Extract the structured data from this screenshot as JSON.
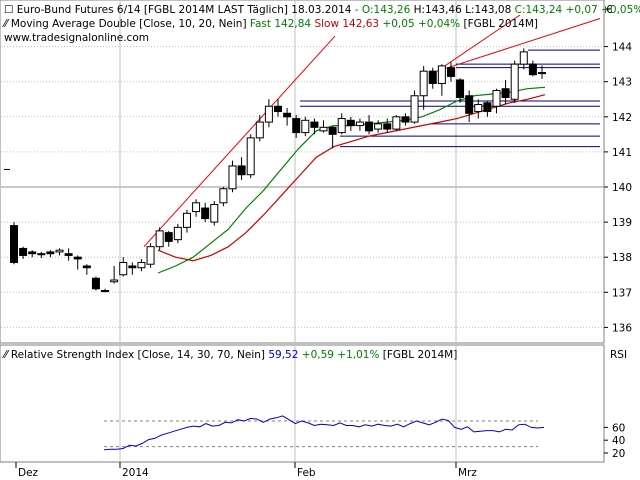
{
  "price_panel": {
    "header": {
      "instrument": "Euro-Bund Futures 6/14 [FGBL 2014M LAST Täglich] 18.03.2014",
      "ohlc_o": "- O:143,26",
      "ohlc_h": "H:143,46",
      "ohlc_l": "L:143,08",
      "ohlc_c": "C:143,24",
      "change": "+0,07 +0,05%"
    },
    "ma_header": {
      "name": "Moving Average Double [Close, 10, 20, Nein]",
      "fast_label": "Fast 142,84",
      "slow_label": "Slow 142,63",
      "change": "+0,05 +0,04%",
      "symbol": "[FGBL 2014M]"
    },
    "website": "www.tradesignalonline.com",
    "currency_symbol": "€",
    "y_ticks": [
      "136",
      "137",
      "138",
      "139",
      "140",
      "141",
      "142",
      "143",
      "144"
    ]
  },
  "rsi_panel": {
    "header": {
      "name": "Relative Strength Index [Close, 14, 30, 70, Nein]",
      "value": "59,52",
      "change": "+0,59 +1,01%",
      "symbol": "[FGBL 2014M]"
    },
    "axis_label": "RSI",
    "y_ticks": [
      "20",
      "40",
      "60"
    ]
  },
  "x_axis": {
    "labels": [
      "Dez",
      "2014",
      "Feb",
      "Mrz"
    ]
  },
  "colors": {
    "fast_ma": "#008000",
    "slow_ma": "#cc0000",
    "rsi_line": "#0000cc",
    "channel": "#ee0000",
    "support": "#000080",
    "grid": "#c0c0c0"
  },
  "chart_data": [
    {
      "type": "candlestick",
      "title": "Euro-Bund Futures 6/14 [FGBL 2014M LAST Täglich]",
      "ylim": [
        135.5,
        144.5
      ],
      "last_bar": {
        "date": "18.03.2014",
        "open": 143.26,
        "high": 143.46,
        "low": 143.08,
        "close": 143.24
      },
      "candles": [
        {
          "o": 138.9,
          "h": 139.0,
          "l": 137.8,
          "c": 137.85
        },
        {
          "o": 138.25,
          "h": 138.3,
          "l": 137.95,
          "c": 138.05
        },
        {
          "o": 138.15,
          "h": 138.2,
          "l": 138.0,
          "c": 138.1
        },
        {
          "o": 138.1,
          "h": 138.15,
          "l": 137.98,
          "c": 138.1
        },
        {
          "o": 138.15,
          "h": 138.2,
          "l": 138.0,
          "c": 138.1
        },
        {
          "o": 138.15,
          "h": 138.25,
          "l": 138.05,
          "c": 138.2
        },
        {
          "o": 138.1,
          "h": 138.25,
          "l": 137.9,
          "c": 138.05
        },
        {
          "o": 138.0,
          "h": 138.05,
          "l": 137.65,
          "c": 137.95
        },
        {
          "o": 137.75,
          "h": 137.8,
          "l": 137.5,
          "c": 137.7
        },
        {
          "o": 137.4,
          "h": 137.45,
          "l": 137.05,
          "c": 137.1
        },
        {
          "o": 137.05,
          "h": 137.1,
          "l": 137.0,
          "c": 137.05
        },
        {
          "o": 137.3,
          "h": 137.75,
          "l": 137.25,
          "c": 137.35
        },
        {
          "o": 137.5,
          "h": 138.0,
          "l": 137.45,
          "c": 137.85
        },
        {
          "o": 137.75,
          "h": 137.85,
          "l": 137.5,
          "c": 137.7
        },
        {
          "o": 137.7,
          "h": 137.95,
          "l": 137.6,
          "c": 137.85
        },
        {
          "o": 137.8,
          "h": 138.4,
          "l": 137.7,
          "c": 138.3
        },
        {
          "o": 138.3,
          "h": 138.85,
          "l": 138.2,
          "c": 138.75
        },
        {
          "o": 138.7,
          "h": 138.75,
          "l": 138.3,
          "c": 138.45
        },
        {
          "o": 138.5,
          "h": 138.95,
          "l": 138.4,
          "c": 138.85
        },
        {
          "o": 138.85,
          "h": 139.35,
          "l": 138.7,
          "c": 139.25
        },
        {
          "o": 139.3,
          "h": 139.65,
          "l": 139.15,
          "c": 139.55
        },
        {
          "o": 139.4,
          "h": 139.55,
          "l": 139.0,
          "c": 139.1
        },
        {
          "o": 139.0,
          "h": 139.6,
          "l": 138.9,
          "c": 139.5
        },
        {
          "o": 139.55,
          "h": 140.0,
          "l": 139.45,
          "c": 139.95
        },
        {
          "o": 139.95,
          "h": 140.75,
          "l": 139.85,
          "c": 140.6
        },
        {
          "o": 140.6,
          "h": 140.85,
          "l": 140.2,
          "c": 140.35
        },
        {
          "o": 140.35,
          "h": 141.5,
          "l": 140.25,
          "c": 141.4
        },
        {
          "o": 141.4,
          "h": 142.05,
          "l": 141.3,
          "c": 141.85
        },
        {
          "o": 141.85,
          "h": 142.5,
          "l": 141.7,
          "c": 142.3
        },
        {
          "o": 142.3,
          "h": 142.5,
          "l": 142.0,
          "c": 142.15
        },
        {
          "o": 142.1,
          "h": 142.25,
          "l": 141.75,
          "c": 142.0
        },
        {
          "o": 141.95,
          "h": 142.05,
          "l": 141.4,
          "c": 141.55
        },
        {
          "o": 141.55,
          "h": 142.0,
          "l": 141.45,
          "c": 141.9
        },
        {
          "o": 141.85,
          "h": 141.95,
          "l": 141.5,
          "c": 141.7
        },
        {
          "o": 141.6,
          "h": 141.9,
          "l": 141.55,
          "c": 141.7
        },
        {
          "o": 141.7,
          "h": 141.75,
          "l": 141.1,
          "c": 141.5
        },
        {
          "o": 141.55,
          "h": 142.1,
          "l": 141.5,
          "c": 141.95
        },
        {
          "o": 141.9,
          "h": 142.0,
          "l": 141.6,
          "c": 141.75
        },
        {
          "o": 141.75,
          "h": 141.95,
          "l": 141.6,
          "c": 141.85
        },
        {
          "o": 141.85,
          "h": 142.05,
          "l": 141.5,
          "c": 141.6
        },
        {
          "o": 141.65,
          "h": 141.9,
          "l": 141.55,
          "c": 141.8
        },
        {
          "o": 141.8,
          "h": 141.95,
          "l": 141.55,
          "c": 141.65
        },
        {
          "o": 141.65,
          "h": 142.05,
          "l": 141.6,
          "c": 142.0
        },
        {
          "o": 142.0,
          "h": 142.1,
          "l": 141.75,
          "c": 141.85
        },
        {
          "o": 141.85,
          "h": 142.75,
          "l": 141.8,
          "c": 142.6
        },
        {
          "o": 142.6,
          "h": 143.45,
          "l": 142.2,
          "c": 143.3
        },
        {
          "o": 143.3,
          "h": 143.4,
          "l": 142.8,
          "c": 142.95
        },
        {
          "o": 142.95,
          "h": 143.5,
          "l": 142.6,
          "c": 143.45
        },
        {
          "o": 143.4,
          "h": 143.55,
          "l": 143.0,
          "c": 143.15
        },
        {
          "o": 143.05,
          "h": 143.1,
          "l": 142.4,
          "c": 142.55
        },
        {
          "o": 142.6,
          "h": 142.75,
          "l": 141.85,
          "c": 142.1
        },
        {
          "o": 142.15,
          "h": 142.5,
          "l": 141.95,
          "c": 142.35
        },
        {
          "o": 142.4,
          "h": 142.45,
          "l": 142.0,
          "c": 142.15
        },
        {
          "o": 142.3,
          "h": 142.8,
          "l": 142.1,
          "c": 142.75
        },
        {
          "o": 142.8,
          "h": 143.05,
          "l": 142.35,
          "c": 142.55
        },
        {
          "o": 142.5,
          "h": 143.6,
          "l": 142.4,
          "c": 143.5
        },
        {
          "o": 143.5,
          "h": 143.95,
          "l": 143.35,
          "c": 143.85
        },
        {
          "o": 143.5,
          "h": 143.6,
          "l": 143.15,
          "c": 143.2
        },
        {
          "o": 143.26,
          "h": 143.46,
          "l": 143.08,
          "c": 143.24
        }
      ],
      "series": [
        {
          "name": "Fast",
          "values": [
            137.55,
            137.75,
            138.0,
            138.4,
            138.8,
            139.4,
            139.9,
            140.5,
            141.1,
            141.6,
            141.75,
            141.75,
            141.8,
            141.85,
            141.9,
            142.0,
            142.2,
            142.45,
            142.6,
            142.65,
            142.7,
            142.8,
            142.84
          ]
        },
        {
          "name": "Slow",
          "values": [
            138.2,
            138.0,
            137.9,
            138.05,
            138.3,
            138.7,
            139.2,
            139.75,
            140.3,
            140.85,
            141.15,
            141.3,
            141.45,
            141.55,
            141.65,
            141.75,
            141.85,
            141.95,
            142.1,
            142.25,
            142.4,
            142.5,
            142.63
          ]
        }
      ],
      "support_levels": [
        143.9,
        143.5,
        143.4,
        142.45,
        142.3,
        141.8,
        141.45,
        141.15
      ],
      "channel": "rising"
    },
    {
      "type": "line",
      "title": "Relative Strength Index [Close, 14, 30, 70, Nein]",
      "ylim": [
        15,
        85
      ],
      "levels": [
        30,
        70
      ],
      "series": [
        {
          "name": "RSI",
          "values": [
            25,
            26,
            26,
            27,
            32,
            31,
            35,
            41,
            43,
            48,
            51,
            54,
            57,
            60,
            62,
            61,
            66,
            62,
            63,
            68,
            67,
            72,
            70,
            74,
            73,
            68,
            73,
            75,
            78,
            72,
            66,
            70,
            67,
            63,
            65,
            64,
            63,
            67,
            63,
            63,
            61,
            64,
            62,
            65,
            63,
            62,
            65,
            61,
            66,
            70,
            67,
            64,
            68,
            73,
            71,
            60,
            57,
            61,
            53,
            54,
            55,
            55,
            53,
            57,
            56,
            64,
            65,
            60,
            59,
            60
          ]
        }
      ]
    }
  ]
}
